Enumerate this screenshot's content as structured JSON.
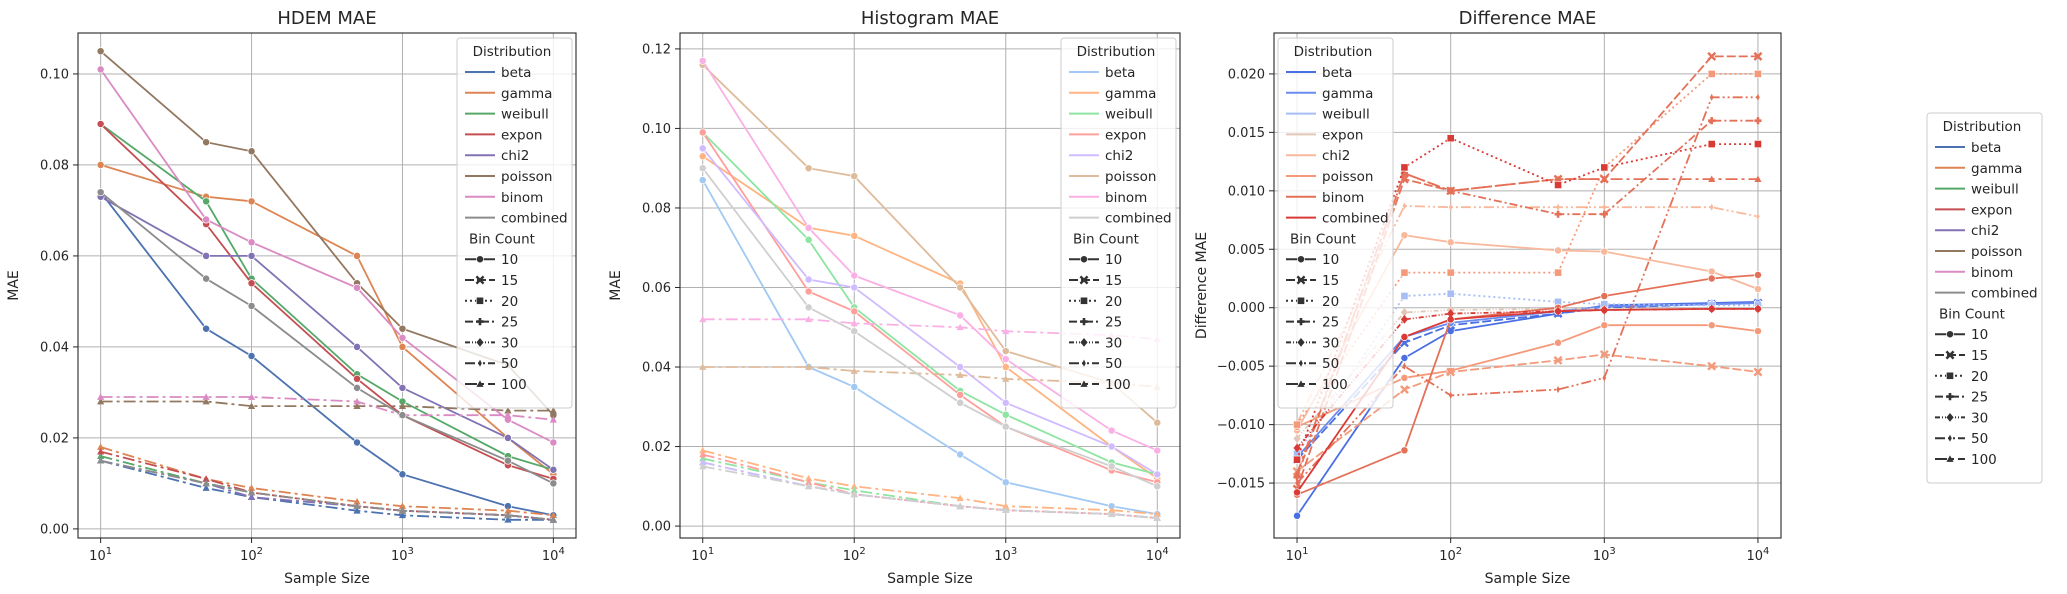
{
  "figure": {
    "legend_title_distribution": "Distribution",
    "legend_title_bins": "Bin Count"
  },
  "chart_data": [
    {
      "type": "line",
      "title": "HDEM MAE",
      "xlabel": "Sample Size",
      "ylabel": "MAE",
      "xscale": "log",
      "x": [
        10,
        50,
        100,
        500,
        1000,
        5000,
        10000
      ],
      "xticks": [
        "10^1",
        "10^2",
        "10^3",
        "10^4"
      ],
      "ylim": [
        -0.002,
        0.109
      ],
      "yticks": [
        0.0,
        0.02,
        0.04,
        0.06,
        0.08,
        0.1
      ],
      "yticklabels": [
        "0.00",
        "0.02",
        "0.04",
        "0.06",
        "0.08",
        "0.10"
      ],
      "grid": true,
      "legend_position": "upper-right",
      "palette": [
        "#4c72b0",
        "#dd8452",
        "#55a868",
        "#c44e52",
        "#8172b3",
        "#937860",
        "#da8bc3",
        "#8c8c8c"
      ],
      "series": [
        {
          "name": "beta",
          "bins": 10,
          "values": [
            0.074,
            0.044,
            0.038,
            0.019,
            0.012,
            0.005,
            0.003
          ]
        },
        {
          "name": "beta",
          "bins": 100,
          "values": [
            0.015,
            0.009,
            0.007,
            0.004,
            0.003,
            0.002,
            0.002
          ]
        },
        {
          "name": "gamma",
          "bins": 10,
          "values": [
            0.08,
            0.073,
            0.072,
            0.06,
            0.04,
            0.02,
            0.012
          ]
        },
        {
          "name": "gamma",
          "bins": 100,
          "values": [
            0.018,
            0.011,
            0.009,
            0.006,
            0.005,
            0.004,
            0.003
          ]
        },
        {
          "name": "weibull",
          "bins": 10,
          "values": [
            0.089,
            0.072,
            0.055,
            0.034,
            0.028,
            0.016,
            0.013
          ]
        },
        {
          "name": "weibull",
          "bins": 100,
          "values": [
            0.016,
            0.01,
            0.008,
            0.005,
            0.004,
            0.003,
            0.002
          ]
        },
        {
          "name": "expon",
          "bins": 10,
          "values": [
            0.089,
            0.067,
            0.054,
            0.033,
            0.025,
            0.014,
            0.011
          ]
        },
        {
          "name": "expon",
          "bins": 100,
          "values": [
            0.017,
            0.011,
            0.008,
            0.005,
            0.004,
            0.003,
            0.002
          ]
        },
        {
          "name": "chi2",
          "bins": 10,
          "values": [
            0.073,
            0.06,
            0.06,
            0.04,
            0.031,
            0.02,
            0.013
          ]
        },
        {
          "name": "chi2",
          "bins": 100,
          "values": [
            0.015,
            0.01,
            0.007,
            0.005,
            0.004,
            0.003,
            0.002
          ]
        },
        {
          "name": "poisson",
          "bins": 10,
          "values": [
            0.105,
            0.085,
            0.083,
            0.054,
            0.044,
            0.036,
            0.025
          ]
        },
        {
          "name": "poisson",
          "bins": 100,
          "values": [
            0.028,
            0.028,
            0.027,
            0.027,
            0.027,
            0.026,
            0.026
          ]
        },
        {
          "name": "binom",
          "bins": 10,
          "values": [
            0.101,
            0.068,
            0.063,
            0.053,
            0.042,
            0.024,
            0.019
          ]
        },
        {
          "name": "binom",
          "bins": 100,
          "values": [
            0.029,
            0.029,
            0.029,
            0.028,
            0.025,
            0.025,
            0.024
          ]
        },
        {
          "name": "combined",
          "bins": 10,
          "values": [
            0.074,
            0.055,
            0.049,
            0.031,
            0.025,
            0.015,
            0.01
          ]
        },
        {
          "name": "combined",
          "bins": 100,
          "values": [
            0.015,
            0.01,
            0.008,
            0.005,
            0.004,
            0.003,
            0.002
          ]
        }
      ]
    },
    {
      "type": "line",
      "title": "Histogram MAE",
      "xlabel": "Sample Size",
      "ylabel": "MAE",
      "xscale": "log",
      "x": [
        10,
        50,
        100,
        500,
        1000,
        5000,
        10000
      ],
      "xticks": [
        "10^1",
        "10^2",
        "10^3",
        "10^4"
      ],
      "ylim": [
        -0.003,
        0.124
      ],
      "yticks": [
        0.0,
        0.02,
        0.04,
        0.06,
        0.08,
        0.1,
        0.12
      ],
      "yticklabels": [
        "0.00",
        "0.02",
        "0.04",
        "0.06",
        "0.08",
        "0.10",
        "0.12"
      ],
      "grid": true,
      "legend_position": "upper-right",
      "palette": [
        "#a1c9f4",
        "#ffb482",
        "#8de5a1",
        "#ff9f9b",
        "#d0bbff",
        "#debb9b",
        "#fab0e4",
        "#cfcfcf"
      ],
      "series": [
        {
          "name": "beta",
          "bins": 10,
          "values": [
            0.087,
            0.04,
            0.035,
            0.018,
            0.011,
            0.005,
            0.003
          ]
        },
        {
          "name": "beta",
          "bins": 100,
          "values": [
            0.016,
            0.01,
            0.008,
            0.005,
            0.004,
            0.003,
            0.002
          ]
        },
        {
          "name": "gamma",
          "bins": 10,
          "values": [
            0.093,
            0.075,
            0.073,
            0.061,
            0.04,
            0.02,
            0.012
          ]
        },
        {
          "name": "gamma",
          "bins": 100,
          "values": [
            0.019,
            0.012,
            0.01,
            0.007,
            0.005,
            0.004,
            0.003
          ]
        },
        {
          "name": "weibull",
          "bins": 10,
          "values": [
            0.099,
            0.072,
            0.055,
            0.034,
            0.028,
            0.016,
            0.013
          ]
        },
        {
          "name": "weibull",
          "bins": 100,
          "values": [
            0.017,
            0.011,
            0.009,
            0.005,
            0.004,
            0.003,
            0.002
          ]
        },
        {
          "name": "expon",
          "bins": 10,
          "values": [
            0.099,
            0.059,
            0.054,
            0.033,
            0.025,
            0.014,
            0.011
          ]
        },
        {
          "name": "expon",
          "bins": 100,
          "values": [
            0.018,
            0.011,
            0.008,
            0.005,
            0.004,
            0.003,
            0.002
          ]
        },
        {
          "name": "chi2",
          "bins": 10,
          "values": [
            0.095,
            0.062,
            0.06,
            0.04,
            0.031,
            0.02,
            0.013
          ]
        },
        {
          "name": "chi2",
          "bins": 100,
          "values": [
            0.016,
            0.01,
            0.008,
            0.005,
            0.004,
            0.003,
            0.002
          ]
        },
        {
          "name": "poisson",
          "bins": 10,
          "values": [
            0.116,
            0.09,
            0.088,
            0.06,
            0.044,
            0.036,
            0.026
          ]
        },
        {
          "name": "poisson",
          "bins": 100,
          "values": [
            0.04,
            0.04,
            0.039,
            0.038,
            0.037,
            0.036,
            0.035
          ]
        },
        {
          "name": "binom",
          "bins": 10,
          "values": [
            0.117,
            0.075,
            0.063,
            0.053,
            0.042,
            0.024,
            0.019
          ]
        },
        {
          "name": "binom",
          "bins": 100,
          "values": [
            0.052,
            0.052,
            0.051,
            0.05,
            0.049,
            0.048,
            0.047
          ]
        },
        {
          "name": "combined",
          "bins": 10,
          "values": [
            0.09,
            0.055,
            0.049,
            0.031,
            0.025,
            0.015,
            0.01
          ]
        },
        {
          "name": "combined",
          "bins": 100,
          "values": [
            0.015,
            0.01,
            0.008,
            0.005,
            0.004,
            0.003,
            0.002
          ]
        }
      ]
    },
    {
      "type": "line",
      "title": "Difference MAE",
      "xlabel": "Sample Size",
      "ylabel": "Difference MAE",
      "xscale": "log",
      "x": [
        10,
        50,
        100,
        500,
        1000,
        5000,
        10000
      ],
      "xticks": [
        "10^1",
        "10^2",
        "10^3",
        "10^4"
      ],
      "ylim": [
        -0.0197,
        0.0235
      ],
      "yticks": [
        -0.015,
        -0.01,
        -0.005,
        0.0,
        0.005,
        0.01,
        0.015,
        0.02
      ],
      "yticklabels": [
        "−0.015",
        "−0.010",
        "−0.005",
        "0.000",
        "0.005",
        "0.010",
        "0.015",
        "0.020"
      ],
      "grid": true,
      "legend_position": "upper-left",
      "palette": [
        "#4a6fe3",
        "#6a8bef",
        "#a6bdf5",
        "#e2c7b8",
        "#f7b89c",
        "#f49a7b",
        "#e57058",
        "#d93a35"
      ],
      "series": [
        {
          "name": "beta",
          "bins": 10,
          "values": [
            -0.0178,
            -0.0043,
            -0.002,
            -0.0005,
            0.0002,
            0.0004,
            0.0005
          ]
        },
        {
          "name": "beta",
          "bins": 15,
          "values": [
            -0.013,
            -0.003,
            -0.0015,
            -0.0005,
            0.0,
            0.0003,
            0.0004
          ]
        },
        {
          "name": "gamma",
          "bins": 10,
          "values": [
            -0.0128,
            -0.0025,
            -0.0013,
            -0.0003,
            0.0001,
            0.0003,
            0.0004
          ]
        },
        {
          "name": "weibull",
          "bins": 20,
          "values": [
            -0.0125,
            0.001,
            0.0012,
            0.0005,
            0.0003,
            0.0002,
            0.0002
          ]
        },
        {
          "name": "expon",
          "bins": 30,
          "values": [
            -0.0112,
            -0.0004,
            -0.0002,
            -0.0001,
            -0.0001,
            -0.0001,
            -0.0001
          ]
        },
        {
          "name": "chi2",
          "bins": 10,
          "values": [
            -0.0105,
            0.0062,
            0.0056,
            0.0049,
            0.0048,
            0.0031,
            0.0016
          ]
        },
        {
          "name": "chi2",
          "bins": 50,
          "values": [
            -0.0099,
            0.0087,
            0.0086,
            0.0086,
            0.0086,
            0.0086,
            0.0078
          ]
        },
        {
          "name": "poisson",
          "bins": 10,
          "values": [
            -0.0102,
            -0.006,
            -0.0054,
            -0.003,
            -0.0015,
            -0.0015,
            -0.002
          ]
        },
        {
          "name": "poisson",
          "bins": 15,
          "values": [
            -0.014,
            -0.007,
            -0.0055,
            -0.0045,
            -0.004,
            -0.005,
            -0.0055
          ]
        },
        {
          "name": "poisson",
          "bins": 20,
          "values": [
            -0.01,
            0.003,
            0.003,
            0.003,
            0.012,
            0.02,
            0.02
          ]
        },
        {
          "name": "binom",
          "bins": 10,
          "values": [
            -0.016,
            -0.0122,
            -0.001,
            0.0,
            0.001,
            0.0025,
            0.0028
          ]
        },
        {
          "name": "binom",
          "bins": 15,
          "values": [
            -0.0155,
            0.011,
            0.01,
            0.011,
            0.011,
            0.0215,
            0.0215
          ]
        },
        {
          "name": "binom",
          "bins": 50,
          "values": [
            -0.015,
            -0.005,
            -0.0075,
            -0.007,
            -0.006,
            0.018,
            0.018
          ]
        },
        {
          "name": "binom",
          "bins": 25,
          "values": [
            -0.0145,
            0.0115,
            0.01,
            0.008,
            0.008,
            0.016,
            0.016
          ]
        },
        {
          "name": "binom",
          "bins": 100,
          "values": [
            -0.0142,
            0.0115,
            0.01,
            0.011,
            0.011,
            0.011,
            0.011
          ]
        },
        {
          "name": "combined",
          "bins": 10,
          "values": [
            -0.0158,
            -0.0025,
            -0.001,
            -0.0003,
            -0.0002,
            -0.0001,
            -0.0001
          ]
        },
        {
          "name": "combined",
          "bins": 20,
          "values": [
            -0.013,
            0.012,
            0.0145,
            0.0105,
            0.012,
            0.014,
            0.014
          ]
        },
        {
          "name": "combined",
          "bins": 30,
          "values": [
            -0.012,
            -0.001,
            -0.0005,
            -0.0003,
            -0.0002,
            -0.0001,
            -0.0001
          ]
        }
      ]
    }
  ],
  "legends": {
    "distribution_names": [
      "beta",
      "gamma",
      "weibull",
      "expon",
      "chi2",
      "poisson",
      "binom",
      "combined"
    ],
    "bin_counts": [
      "10",
      "15",
      "20",
      "25",
      "30",
      "50",
      "100"
    ],
    "shared_palette": [
      "#4c72b0",
      "#dd8452",
      "#55a868",
      "#c44e52",
      "#8172b3",
      "#937860",
      "#da8bc3",
      "#8c8c8c"
    ]
  }
}
